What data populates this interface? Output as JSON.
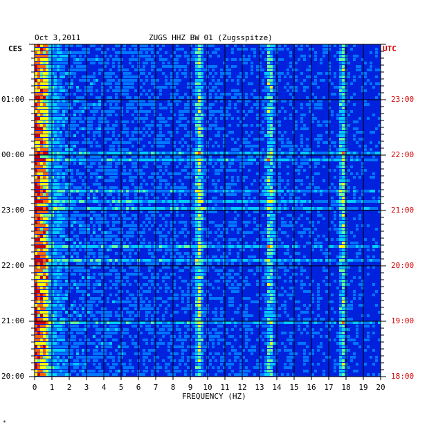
{
  "header": {
    "date": "Oct 3,2011",
    "station": "ZUGS HHZ BW 01 (Zugsspitze)"
  },
  "axes": {
    "left_tz": "CES",
    "right_tz": "UTC",
    "xlabel": "FREQUENCY (HZ)",
    "left_ticks": [
      "01:00",
      "00:00",
      "23:00",
      "22:00",
      "21:00",
      "20:00"
    ],
    "right_ticks": [
      "23:00",
      "22:00",
      "21:00",
      "20:00",
      "19:00",
      "18:00"
    ]
  },
  "footer_mark": "*",
  "chart_data": {
    "type": "heatmap",
    "title": "ZUGS HHZ BW 01 (Zugsspitze)",
    "subtitle": "Oct 3,2011",
    "xlabel": "FREQUENCY (HZ)",
    "x_ticks": [
      0,
      1,
      2,
      3,
      4,
      5,
      6,
      7,
      8,
      9,
      10,
      11,
      12,
      13,
      14,
      15,
      16,
      17,
      18,
      19,
      20
    ],
    "xlim": [
      0,
      20
    ],
    "y_left_label": "CES",
    "y_right_label": "UTC",
    "y_ticks_left": [
      "01:00",
      "00:00",
      "23:00",
      "22:00",
      "21:00",
      "20:00"
    ],
    "y_ticks_right": [
      "23:00",
      "22:00",
      "21:00",
      "20:00",
      "19:00",
      "18:00"
    ],
    "hot_frequency_bands_hz": [
      0.3,
      9.5,
      13.6,
      17.8
    ],
    "grid": true,
    "colormap": [
      "#0000a0",
      "#0022dd",
      "#0077ff",
      "#00ccff",
      "#66ff99",
      "#ffff00",
      "#ff6600",
      "#cc0000"
    ]
  }
}
